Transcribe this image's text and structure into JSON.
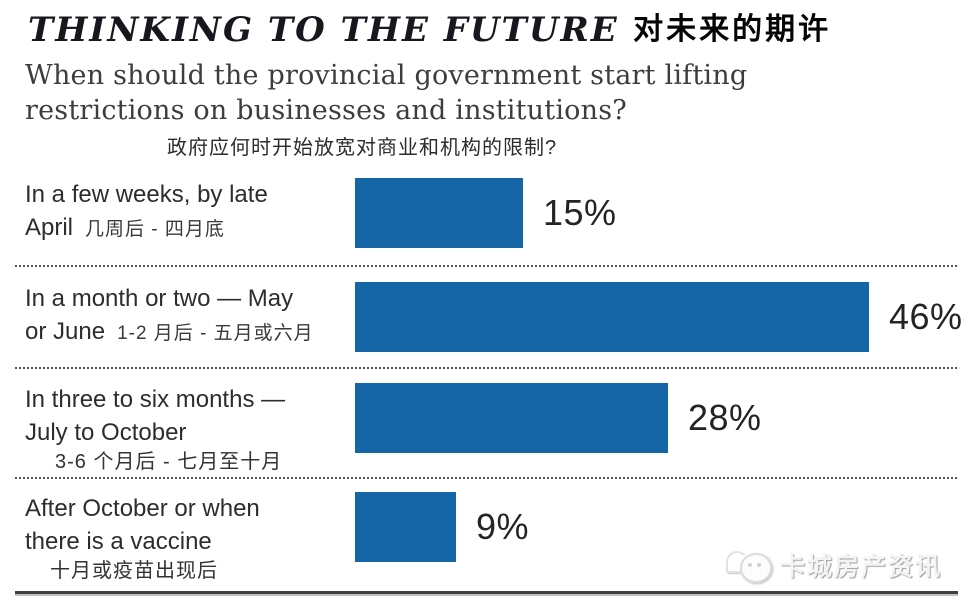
{
  "header": {
    "title_en": "THINKING TO THE FUTURE",
    "title_zh": "对未来的期许",
    "question_line1": "When should the provincial government start lifting",
    "question_line2": "restrictions on businesses and institutions?",
    "question_zh": "政府应何时开始放宽对商业和机构的限制?"
  },
  "chart_data": {
    "type": "bar",
    "orientation": "horizontal",
    "title": "THINKING TO THE FUTURE 对未来的期许",
    "question": "When should the provincial government start lifting restrictions on businesses and institutions?",
    "question_zh": "政府应何时开始放宽对商业和机构的限制?",
    "categories": [
      "In a few weeks, by late April 几周后 - 四月底",
      "In a month or two — May or June 1-2 月后 - 五月或六月",
      "In three to six months — July to October 3-6 个月后 - 七月至十月",
      "After October or when there is a vaccine 十月或疫苗出现后"
    ],
    "values": [
      15,
      46,
      28,
      9
    ],
    "unit": "%",
    "xlim": [
      0,
      50
    ],
    "bar_color": "#1566a6",
    "grid": false,
    "legend": false,
    "value_labels_position": "right-of-bar"
  },
  "rows": [
    {
      "line1": "In a few weeks, by late",
      "line2": "April",
      "zh": "几周后 - 四月底",
      "value_label": "15%"
    },
    {
      "line1": "In a month or two — May",
      "line2": "or June",
      "zh": "1-2 月后 - 五月或六月",
      "value_label": "46%"
    },
    {
      "line1": "In three to six months —",
      "line2": "July to October",
      "zh": "3-6 个月后 - 七月至十月",
      "value_label": "28%"
    },
    {
      "line1": "After October or when",
      "line2": "there is a vaccine",
      "zh": "十月或疫苗出现后",
      "value_label": "9%"
    }
  ],
  "watermark": {
    "text": "卡城房产资讯"
  },
  "colors": {
    "bar": "#1566a6",
    "title": "#17171d",
    "question": "#3d3d3d",
    "label": "#2d2d2d",
    "separator_dots": "#555555"
  }
}
